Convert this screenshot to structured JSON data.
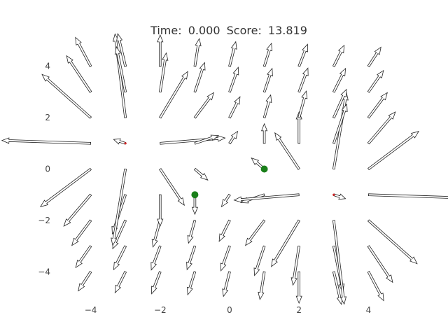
{
  "hud": {
    "time_label": "Time:",
    "time_value": "0.000",
    "score_label": "Score:",
    "score_value": "13.819"
  },
  "axes": {
    "xlim": [
      -5,
      5
    ],
    "ylim": [
      -5,
      5
    ],
    "x_ticks": [
      -4,
      -2,
      0,
      2,
      4
    ],
    "y_ticks": [
      4,
      2,
      0,
      -2,
      -4
    ],
    "x_tick_labels": [
      "−4",
      "−2",
      "0",
      "2",
      "4"
    ],
    "y_tick_labels": [
      "4",
      "2",
      "0",
      "−2",
      "−4"
    ],
    "frame": false,
    "grid": false
  },
  "field": {
    "grid_step": 1,
    "grid_min": -4,
    "grid_max": 4,
    "sources": [
      {
        "x": -3,
        "y": 1,
        "strength": 1
      },
      {
        "x": 3,
        "y": -1,
        "strength": 1
      }
    ],
    "source_color": "#d62728",
    "arrow_fill": "#ffffff",
    "arrow_edge": "#222222"
  },
  "players": [
    {
      "x": -1,
      "y": -1,
      "color": "#1a7f1a"
    },
    {
      "x": 1,
      "y": 0,
      "color": "#1a7f1a"
    }
  ]
}
